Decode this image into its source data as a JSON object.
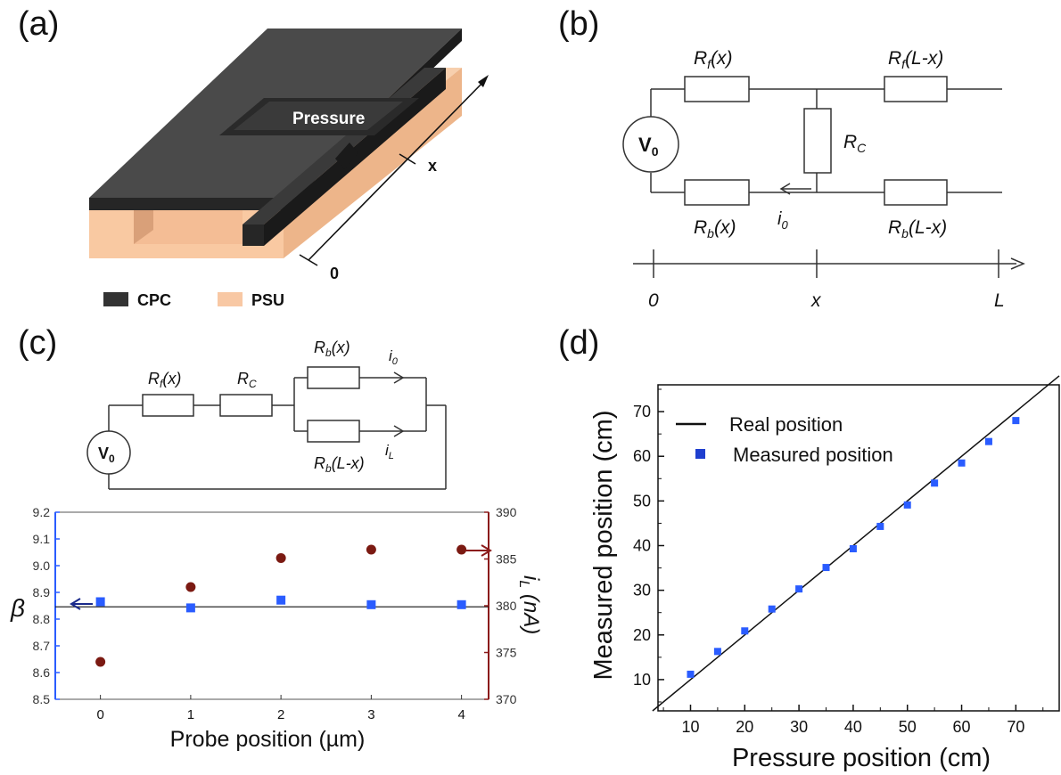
{
  "panel_labels": [
    "(a)",
    "(b)",
    "(c)",
    "(d)"
  ],
  "panel_a": {
    "pressure_label": "Pressure",
    "x_label": "x",
    "zero_label": "0",
    "legend": [
      {
        "label": "CPC",
        "color": "#333333"
      },
      {
        "label": "PSU",
        "color": "#f8c8a4"
      }
    ]
  },
  "panel_b": {
    "source": {
      "main": "V",
      "sub": "0"
    },
    "r_f_x": {
      "main": "R",
      "sub": "f",
      "arg": "(x)"
    },
    "r_f_lx": {
      "main": "R",
      "sub": "f",
      "arg": "(L-x)"
    },
    "r_c": {
      "main": "R",
      "sub": "C",
      "arg": ""
    },
    "r_b_x": {
      "main": "R",
      "sub": "b",
      "arg": "(x)"
    },
    "r_b_lx": {
      "main": "R",
      "sub": "b",
      "arg": "(L-x)"
    },
    "current": {
      "main": "i",
      "sub": "0"
    },
    "axis_ticks": [
      "0",
      "x",
      "L"
    ]
  },
  "panel_c_circuit": {
    "source": {
      "main": "V",
      "sub": "0"
    },
    "r_f_x": {
      "main": "R",
      "sub": "f",
      "arg": "(x)"
    },
    "r_c": {
      "main": "R",
      "sub": "C",
      "arg": ""
    },
    "r_b_x": {
      "main": "R",
      "sub": "b",
      "arg": "(x)"
    },
    "r_b_lx": {
      "main": "R",
      "sub": "b",
      "arg": "(L-x)"
    },
    "i_0": {
      "main": "i",
      "sub": "0"
    },
    "i_L": {
      "main": "i",
      "sub": "L"
    }
  },
  "chart_data": [
    {
      "id": "panel-c",
      "type": "scatter",
      "xlabel": "Probe position (µm)",
      "ylabel_left": "β",
      "ylabel_right": {
        "main": "i",
        "sub": "L",
        "unit": " (nA)"
      },
      "xlim": [
        -0.5,
        4.3
      ],
      "xticks": [
        0,
        1,
        2,
        3,
        4
      ],
      "ylim_left": [
        8.5,
        9.2
      ],
      "yticks_left": [
        "8.5",
        "8.6",
        "8.7",
        "8.8",
        "8.9",
        "9.0",
        "9.1",
        "9.2"
      ],
      "ylim_right": [
        370,
        390
      ],
      "yticks_right": [
        "370",
        "375",
        "380",
        "385",
        "390"
      ],
      "left_axis_color": "#2a5cff",
      "right_axis_color": "#8b1a1a",
      "reference_line_beta": 8.846,
      "series": [
        {
          "axis": "left",
          "marker": "square",
          "color": "#2a5cff",
          "x": [
            0,
            1,
            2,
            3,
            4
          ],
          "y": [
            8.865,
            8.842,
            8.871,
            8.854,
            8.854
          ]
        },
        {
          "axis": "right",
          "marker": "circle",
          "color": "#7b1a12",
          "x": [
            0,
            1,
            2,
            3,
            4
          ],
          "y": [
            374,
            382,
            385.1,
            386,
            386
          ]
        }
      ]
    },
    {
      "id": "panel-d",
      "type": "scatter",
      "xlabel": "Pressure position (cm)",
      "ylabel": "Measured position (cm)",
      "xlim": [
        4,
        78
      ],
      "ylim": [
        3,
        76
      ],
      "xticks": [
        10,
        20,
        30,
        40,
        50,
        60,
        70
      ],
      "yticks": [
        10,
        20,
        30,
        40,
        50,
        60,
        70
      ],
      "legend": [
        {
          "label": "Real position",
          "marker": "line",
          "color": "#000000"
        },
        {
          "label": "Measured position",
          "marker": "square",
          "color": "#1f3fcf"
        }
      ],
      "real_line": {
        "x": [
          3,
          78
        ],
        "y": [
          3,
          78
        ]
      },
      "series": [
        {
          "name": "Measured position",
          "marker": "square",
          "color": "#2a5cff",
          "x": [
            10,
            15,
            20,
            25,
            30,
            35,
            40,
            45,
            50,
            55,
            60,
            65,
            70
          ],
          "y": [
            11.2,
            16.3,
            20.9,
            25.8,
            30.3,
            35.1,
            39.3,
            44.3,
            49.1,
            54.0,
            58.5,
            63.3,
            68.0
          ]
        }
      ]
    }
  ]
}
